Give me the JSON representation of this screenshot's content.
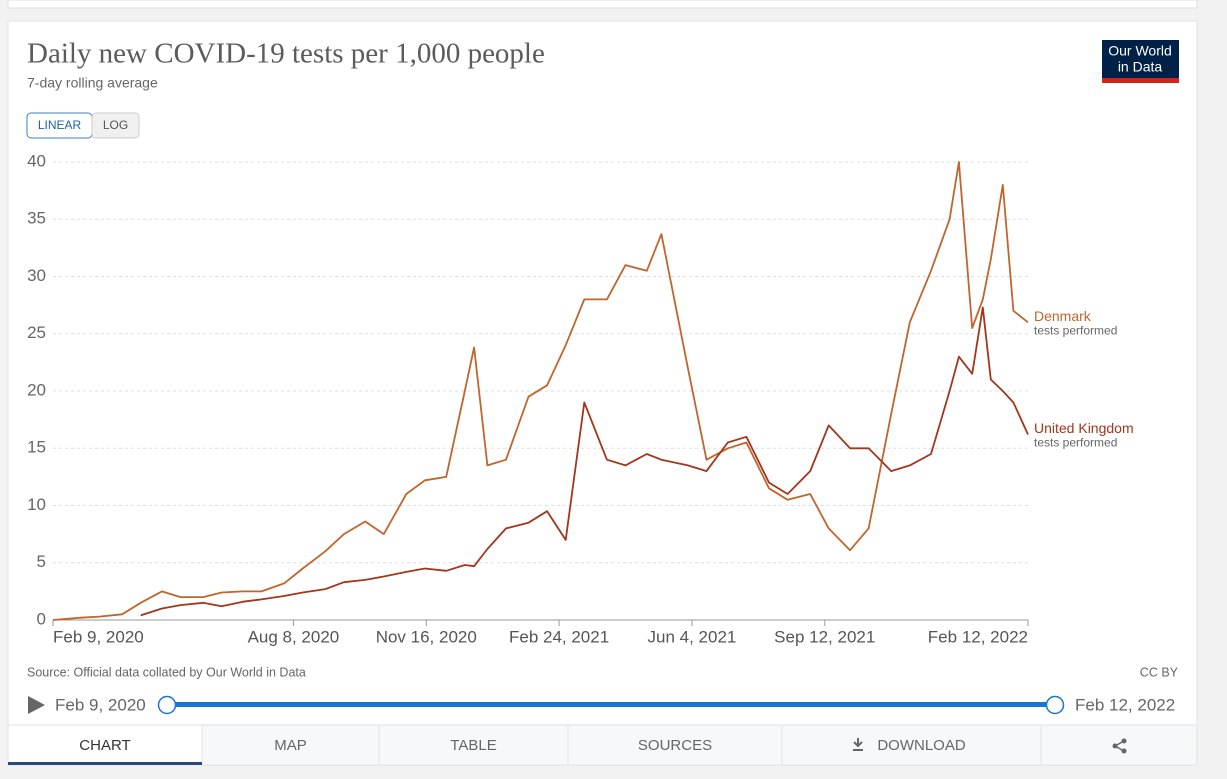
{
  "chart_data": {
    "type": "line",
    "title": "Daily new COVID-19 tests per 1,000 people",
    "subtitle": "7-day rolling average",
    "x": [
      "2020-02-09",
      "2020-03-01",
      "2020-03-15",
      "2020-04-01",
      "2020-04-15",
      "2020-05-01",
      "2020-05-15",
      "2020-06-01",
      "2020-06-15",
      "2020-07-01",
      "2020-07-15",
      "2020-08-01",
      "2020-08-15",
      "2020-09-01",
      "2020-09-15",
      "2020-10-01",
      "2020-10-15",
      "2020-11-01",
      "2020-11-15",
      "2020-12-01",
      "2020-12-15",
      "2020-12-22",
      "2021-01-01",
      "2021-01-15",
      "2021-02-01",
      "2021-02-15",
      "2021-03-01",
      "2021-03-15",
      "2021-04-01",
      "2021-04-15",
      "2021-05-01",
      "2021-05-12",
      "2021-06-01",
      "2021-06-15",
      "2021-07-01",
      "2021-07-15",
      "2021-08-01",
      "2021-08-15",
      "2021-09-01",
      "2021-09-15",
      "2021-10-01",
      "2021-10-15",
      "2021-11-01",
      "2021-11-15",
      "2021-12-01",
      "2021-12-15",
      "2021-12-22",
      "2022-01-01",
      "2022-01-09",
      "2022-01-15",
      "2022-01-24",
      "2022-02-01",
      "2022-02-12"
    ],
    "series": [
      {
        "name": "Denmark",
        "note": "tests performed",
        "color": "#c0652c",
        "values": [
          0,
          0.2,
          0.3,
          0.5,
          1.5,
          2.5,
          2.0,
          2.0,
          2.4,
          2.5,
          2.5,
          3.2,
          4.5,
          6.0,
          7.5,
          8.6,
          7.5,
          11,
          12.2,
          12.5,
          20,
          23.8,
          13.5,
          14,
          19.5,
          20.5,
          24,
          28,
          28,
          31,
          30.5,
          33.7,
          22,
          14,
          15,
          15.5,
          11.5,
          10.5,
          11,
          8,
          6.1,
          8,
          18,
          26,
          30.5,
          35,
          40,
          25.5,
          28,
          31.5,
          38,
          27,
          26
        ]
      },
      {
        "name": "United Kingdom",
        "note": "tests performed",
        "color": "#a3361b",
        "values": [
          null,
          null,
          null,
          null,
          0.4,
          1.0,
          1.3,
          1.5,
          1.2,
          1.6,
          1.8,
          2.1,
          2.4,
          2.7,
          3.3,
          3.5,
          3.8,
          4.2,
          4.5,
          4.3,
          4.8,
          4.7,
          6.2,
          8,
          8.5,
          9.5,
          7,
          19,
          14,
          13.5,
          14.5,
          14,
          13.5,
          13,
          15.5,
          16,
          12,
          11,
          13,
          17,
          15,
          15,
          13,
          13.5,
          14.5,
          20,
          23,
          21.5,
          27.3,
          21,
          20,
          19,
          16.2
        ]
      }
    ],
    "xlim": [
      "2020-02-09",
      "2022-02-12"
    ],
    "xticks": [
      {
        "value": "2020-02-09",
        "label": "Feb 9, 2020"
      },
      {
        "value": "2020-08-08",
        "label": "Aug 8, 2020"
      },
      {
        "value": "2020-11-16",
        "label": "Nov 16, 2020"
      },
      {
        "value": "2021-02-24",
        "label": "Feb 24, 2021"
      },
      {
        "value": "2021-06-04",
        "label": "Jun 4, 2021"
      },
      {
        "value": "2021-09-12",
        "label": "Sep 12, 2021"
      },
      {
        "value": "2022-02-12",
        "label": "Feb 12, 2022"
      }
    ],
    "ylim": [
      0,
      40
    ],
    "yticks": [
      0,
      5,
      10,
      15,
      20,
      25,
      30,
      35,
      40
    ],
    "grid": true,
    "log_scale": false,
    "source": "Source: Official data collated by Our World in Data",
    "license": "CC BY"
  },
  "logo": [
    "Our World",
    "in Data"
  ],
  "scale_buttons": [
    "LINEAR",
    "LOG"
  ],
  "timeline": {
    "start": "Feb 9, 2020",
    "end": "Feb 12, 2022"
  },
  "tabs": [
    "CHART",
    "MAP",
    "TABLE",
    "SOURCES",
    "DOWNLOAD"
  ]
}
